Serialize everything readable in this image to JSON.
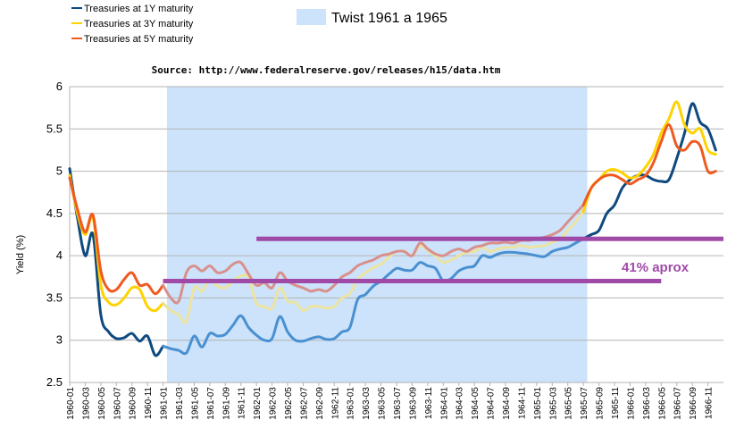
{
  "chart_data": {
    "type": "line",
    "source": "Source: http://www.federalreserve.gov/releases/h15/data.htm",
    "ylabel": "Yield (%)",
    "ylim": [
      2.5,
      6
    ],
    "yticks": [
      "2.5",
      "3",
      "3.5",
      "4",
      "4.5",
      "5",
      "5.5",
      "6"
    ],
    "y_tick_values": [
      2.5,
      3,
      3.5,
      4,
      4.5,
      5,
      5.5,
      6
    ],
    "legend_position": "top-left",
    "x_labels": [
      "1960-01",
      "1960-03",
      "1960-05",
      "1960-07",
      "1960-09",
      "1960-11",
      "1961-01",
      "1961-03",
      "1961-05",
      "1961-07",
      "1961-09",
      "1961-11",
      "1962-01",
      "1962-03",
      "1962-05",
      "1962-07",
      "1962-09",
      "1962-11",
      "1963-01",
      "1963-03",
      "1963-05",
      "1963-07",
      "1963-09",
      "1963-11",
      "1964-01",
      "1964-03",
      "1964-05",
      "1964-07",
      "1964-09",
      "1964-11",
      "1965-01",
      "1965-03",
      "1965-05",
      "1965-07",
      "1965-09",
      "1965-11",
      "1966-01",
      "1966-03",
      "1966-05",
      "1966-07",
      "1966-09",
      "1966-11"
    ],
    "months": 84,
    "twist": {
      "label": "Twist 1961 a 1965",
      "start": 12.5,
      "end": 66.5,
      "color": "#cce3fb"
    },
    "annotation": {
      "text": "41% aprox",
      "color": "#a04aa8"
    },
    "hlines": [
      {
        "y": 4.2,
        "x_start": 24,
        "x_end": 84,
        "color": "#a04aa8"
      },
      {
        "y": 3.7,
        "x_start": 12,
        "x_end": 76,
        "color": "#a04aa8"
      }
    ],
    "series": [
      {
        "name": "Treasuries at 1Y maturity",
        "color": "#0e4a80",
        "pale_color": "#4a90d0",
        "values": [
          5.03,
          4.45,
          4.0,
          4.25,
          3.3,
          3.1,
          3.02,
          3.03,
          3.08,
          2.99,
          3.05,
          2.82,
          2.93,
          2.9,
          2.88,
          2.85,
          3.05,
          2.92,
          3.08,
          3.05,
          3.07,
          3.18,
          3.29,
          3.15,
          3.06,
          3.0,
          3.02,
          3.28,
          3.1,
          3.0,
          2.99,
          3.02,
          3.04,
          3.01,
          3.02,
          3.1,
          3.15,
          3.48,
          3.54,
          3.64,
          3.7,
          3.78,
          3.85,
          3.83,
          3.83,
          3.92,
          3.88,
          3.85,
          3.7,
          3.73,
          3.82,
          3.86,
          3.88,
          4.0,
          3.98,
          4.02,
          4.04,
          4.04,
          4.03,
          4.02,
          4.0,
          3.99,
          4.05,
          4.08,
          4.1,
          4.15,
          4.2,
          4.25,
          4.3,
          4.5,
          4.6,
          4.8,
          4.9,
          4.95,
          4.95,
          4.9,
          4.88,
          4.9,
          5.15,
          5.45,
          5.8,
          5.58,
          5.5,
          5.25
        ]
      },
      {
        "name": "Treasuries at 3Y maturity",
        "color": "#ffd200",
        "pale_color": "#ece3a0",
        "values": [
          4.95,
          4.5,
          4.25,
          4.45,
          3.65,
          3.45,
          3.42,
          3.5,
          3.62,
          3.6,
          3.4,
          3.35,
          3.44,
          3.35,
          3.3,
          3.22,
          3.62,
          3.58,
          3.72,
          3.64,
          3.62,
          3.7,
          3.76,
          3.74,
          3.44,
          3.4,
          3.38,
          3.62,
          3.46,
          3.45,
          3.35,
          3.4,
          3.4,
          3.38,
          3.4,
          3.5,
          3.55,
          3.72,
          3.8,
          3.86,
          3.9,
          3.98,
          4.05,
          4.05,
          4.0,
          4.12,
          4.06,
          4.0,
          3.92,
          3.95,
          4.0,
          4.04,
          4.05,
          4.1,
          4.05,
          4.08,
          4.1,
          4.1,
          4.12,
          4.1,
          4.11,
          4.12,
          4.16,
          4.2,
          4.3,
          4.4,
          4.52,
          4.8,
          4.9,
          5.0,
          5.02,
          4.98,
          4.92,
          4.95,
          5.05,
          5.2,
          5.45,
          5.62,
          5.82,
          5.55,
          5.45,
          5.5,
          5.25,
          5.2
        ]
      },
      {
        "name": "Treasuries at 5Y maturity",
        "color": "#f05a1e",
        "pale_color": "#d9908c",
        "values": [
          4.92,
          4.55,
          4.28,
          4.48,
          3.82,
          3.6,
          3.6,
          3.72,
          3.8,
          3.65,
          3.66,
          3.55,
          3.65,
          3.5,
          3.46,
          3.8,
          3.88,
          3.82,
          3.88,
          3.8,
          3.82,
          3.9,
          3.92,
          3.78,
          3.65,
          3.68,
          3.62,
          3.8,
          3.7,
          3.65,
          3.62,
          3.58,
          3.6,
          3.58,
          3.65,
          3.75,
          3.8,
          3.88,
          3.92,
          3.95,
          4.0,
          4.02,
          4.05,
          4.05,
          4.0,
          4.15,
          4.08,
          4.02,
          4.0,
          4.05,
          4.08,
          4.05,
          4.1,
          4.12,
          4.15,
          4.15,
          4.16,
          4.15,
          4.18,
          4.18,
          4.2,
          4.22,
          4.25,
          4.3,
          4.4,
          4.5,
          4.6,
          4.8,
          4.9,
          4.95,
          4.95,
          4.9,
          4.85,
          4.9,
          4.95,
          5.1,
          5.35,
          5.55,
          5.3,
          5.25,
          5.35,
          5.3,
          5.0,
          5.0
        ]
      }
    ]
  }
}
